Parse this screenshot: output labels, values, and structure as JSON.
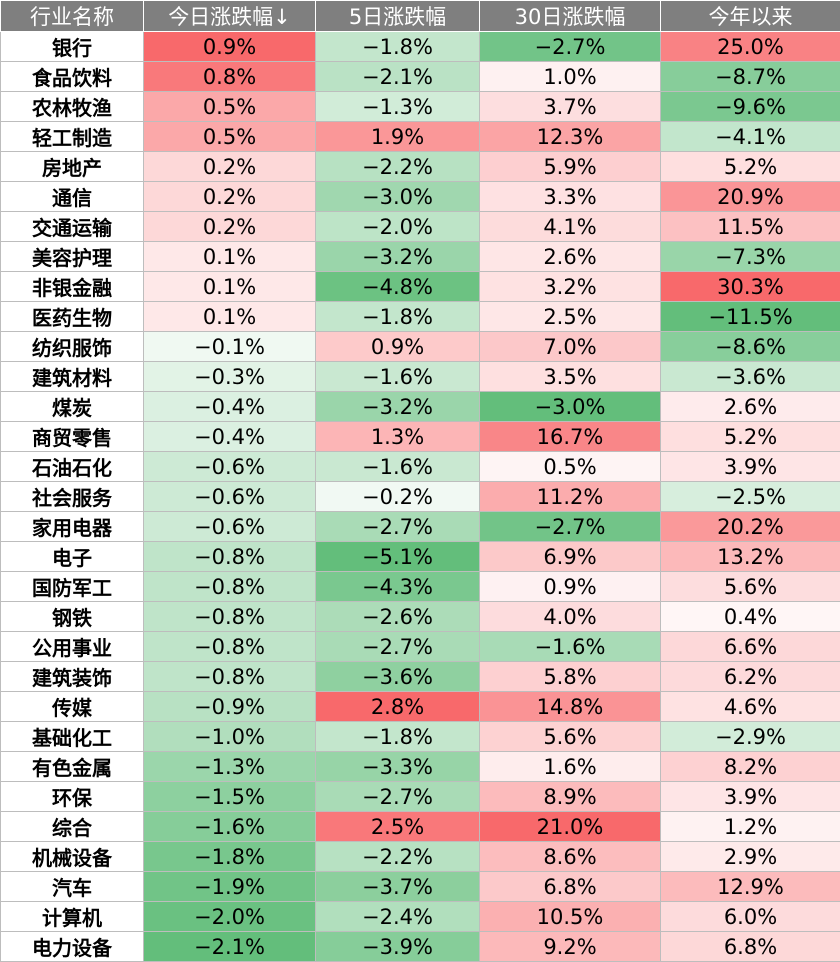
{
  "chart_data": {
    "type": "table",
    "columns": [
      "行业名称",
      "今日涨跌幅↓",
      "5日涨跌幅",
      "30日涨跌幅",
      "今年以来"
    ],
    "rows": [
      {
        "name": "银行",
        "values": [
          "0.9%",
          "−1.8%",
          "−2.7%",
          "25.0%"
        ]
      },
      {
        "name": "食品饮料",
        "values": [
          "0.8%",
          "−2.1%",
          "1.0%",
          "−8.7%"
        ]
      },
      {
        "name": "农林牧渔",
        "values": [
          "0.5%",
          "−1.3%",
          "3.7%",
          "−9.6%"
        ]
      },
      {
        "name": "轻工制造",
        "values": [
          "0.5%",
          "1.9%",
          "12.3%",
          "−4.1%"
        ]
      },
      {
        "name": "房地产",
        "values": [
          "0.2%",
          "−2.2%",
          "5.9%",
          "5.2%"
        ]
      },
      {
        "name": "通信",
        "values": [
          "0.2%",
          "−3.0%",
          "3.3%",
          "20.9%"
        ]
      },
      {
        "name": "交通运输",
        "values": [
          "0.2%",
          "−2.0%",
          "4.1%",
          "11.5%"
        ]
      },
      {
        "name": "美容护理",
        "values": [
          "0.1%",
          "−3.2%",
          "2.6%",
          "−7.3%"
        ]
      },
      {
        "name": "非银金融",
        "values": [
          "0.1%",
          "−4.8%",
          "3.2%",
          "30.3%"
        ]
      },
      {
        "name": "医药生物",
        "values": [
          "0.1%",
          "−1.8%",
          "2.5%",
          "−11.5%"
        ]
      },
      {
        "name": "纺织服饰",
        "values": [
          "−0.1%",
          "0.9%",
          "7.0%",
          "−8.6%"
        ]
      },
      {
        "name": "建筑材料",
        "values": [
          "−0.3%",
          "−1.6%",
          "3.5%",
          "−3.6%"
        ]
      },
      {
        "name": "煤炭",
        "values": [
          "−0.4%",
          "−3.2%",
          "−3.0%",
          "2.6%"
        ]
      },
      {
        "name": "商贸零售",
        "values": [
          "−0.4%",
          "1.3%",
          "16.7%",
          "5.2%"
        ]
      },
      {
        "name": "石油石化",
        "values": [
          "−0.6%",
          "−1.6%",
          "0.5%",
          "3.9%"
        ]
      },
      {
        "name": "社会服务",
        "values": [
          "−0.6%",
          "−0.2%",
          "11.2%",
          "−2.5%"
        ]
      },
      {
        "name": "家用电器",
        "values": [
          "−0.6%",
          "−2.7%",
          "−2.7%",
          "20.2%"
        ]
      },
      {
        "name": "电子",
        "values": [
          "−0.8%",
          "−5.1%",
          "6.9%",
          "13.2%"
        ]
      },
      {
        "name": "国防军工",
        "values": [
          "−0.8%",
          "−4.3%",
          "0.9%",
          "5.6%"
        ]
      },
      {
        "name": "钢铁",
        "values": [
          "−0.8%",
          "−2.6%",
          "4.0%",
          "0.4%"
        ]
      },
      {
        "name": "公用事业",
        "values": [
          "−0.8%",
          "−2.7%",
          "−1.6%",
          "6.6%"
        ]
      },
      {
        "name": "建筑装饰",
        "values": [
          "−0.8%",
          "−3.6%",
          "5.8%",
          "6.2%"
        ]
      },
      {
        "name": "传媒",
        "values": [
          "−0.9%",
          "2.8%",
          "14.8%",
          "4.6%"
        ]
      },
      {
        "name": "基础化工",
        "values": [
          "−1.0%",
          "−1.8%",
          "5.6%",
          "−2.9%"
        ]
      },
      {
        "name": "有色金属",
        "values": [
          "−1.3%",
          "−3.3%",
          "1.6%",
          "8.2%"
        ]
      },
      {
        "name": "环保",
        "values": [
          "−1.5%",
          "−2.7%",
          "8.9%",
          "3.9%"
        ]
      },
      {
        "name": "综合",
        "values": [
          "−1.6%",
          "2.5%",
          "21.0%",
          "1.2%"
        ]
      },
      {
        "name": "机械设备",
        "values": [
          "−1.8%",
          "−2.2%",
          "8.6%",
          "2.9%"
        ]
      },
      {
        "name": "汽车",
        "values": [
          "−1.9%",
          "−3.7%",
          "6.8%",
          "12.9%"
        ]
      },
      {
        "name": "计算机",
        "values": [
          "−2.0%",
          "−2.4%",
          "10.5%",
          "6.0%"
        ]
      },
      {
        "name": "电力设备",
        "values": [
          "−2.1%",
          "−3.9%",
          "9.2%",
          "6.8%"
        ]
      }
    ],
    "colors": {
      "header_bg": "#7f7f7f",
      "positive": "#f8696b",
      "negative": "#63be7b",
      "neutral": "#ffffff"
    }
  }
}
